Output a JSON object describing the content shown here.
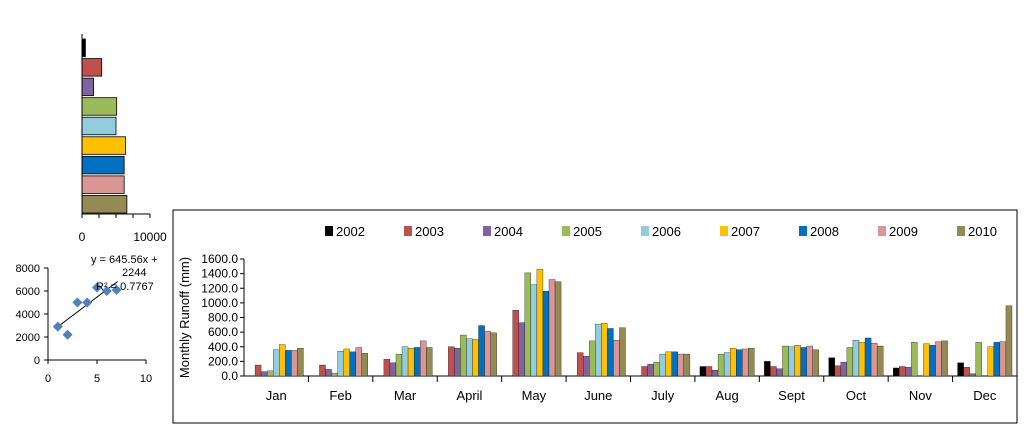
{
  "chart_data": [
    {
      "type": "bar",
      "orientation": "horizontal",
      "categories": [
        "2002",
        "2003",
        "2004",
        "2005",
        "2006",
        "2007",
        "2008",
        "2009",
        "2010"
      ],
      "values": [
        500,
        2900,
        1700,
        5100,
        5000,
        6400,
        6200,
        6200,
        6600
      ],
      "colors": [
        "#000000",
        "#c0504d",
        "#8064a2",
        "#9bbb59",
        "#93cddd",
        "#ffc000",
        "#0070c0",
        "#d99694",
        "#948a54"
      ],
      "xlim": [
        0,
        10000
      ],
      "xticks": [
        0,
        10000
      ],
      "xtick_labels": [
        "0",
        "10000"
      ],
      "title": "",
      "xlabel": "",
      "ylabel": ""
    },
    {
      "type": "scatter",
      "x": [
        1,
        2,
        3,
        4,
        5,
        6,
        7
      ],
      "y": [
        2900,
        2200,
        5000,
        5000,
        6300,
        6000,
        6100
      ],
      "xlim": [
        0,
        10
      ],
      "ylim": [
        0,
        8000
      ],
      "xticks": [
        "0",
        "5",
        "10"
      ],
      "yticks": [
        "0",
        "2000",
        "4000",
        "6000",
        "8000"
      ],
      "trendline": {
        "slope": 645.56,
        "intercept": 2244
      },
      "annotation": {
        "line1": "y = 645.56x +",
        "line2": "2244",
        "line3": "R² = 0.7767"
      },
      "marker_color": "#4f81bd",
      "title": "",
      "xlabel": "",
      "ylabel": ""
    },
    {
      "type": "bar",
      "categories": [
        "Jan",
        "Feb",
        "Mar",
        "April",
        "May",
        "June",
        "July",
        "Aug",
        "Sept",
        "Oct",
        "Nov",
        "Dec"
      ],
      "ylabel": "Monthly  Runoff (mm)",
      "xlabel": "",
      "title": "",
      "ylim": [
        0,
        1600
      ],
      "yticks": [
        "0.0",
        "200.0",
        "400.0",
        "600.0",
        "800.0",
        "1000.0",
        "1200.0",
        "1400.0",
        "1600.0"
      ],
      "legend_position": "top",
      "grid": false,
      "series": [
        {
          "name": "2002",
          "color": "#000000",
          "values": [
            0,
            0,
            0,
            0,
            0,
            0,
            0,
            130,
            200,
            250,
            110,
            180
          ]
        },
        {
          "name": "2003",
          "color": "#c0504d",
          "values": [
            150,
            150,
            230,
            400,
            900,
            320,
            130,
            130,
            130,
            140,
            130,
            120
          ]
        },
        {
          "name": "2004",
          "color": "#8064a2",
          "values": [
            60,
            90,
            180,
            380,
            730,
            270,
            160,
            80,
            100,
            190,
            120,
            30
          ]
        },
        {
          "name": "2005",
          "color": "#9bbb59",
          "values": [
            70,
            40,
            300,
            560,
            1410,
            480,
            190,
            300,
            410,
            390,
            460,
            460
          ]
        },
        {
          "name": "2006",
          "color": "#93cddd",
          "values": [
            360,
            340,
            400,
            510,
            1250,
            710,
            300,
            320,
            400,
            490,
            0,
            0
          ]
        },
        {
          "name": "2007",
          "color": "#ffc000",
          "values": [
            430,
            370,
            380,
            500,
            1460,
            720,
            330,
            380,
            420,
            460,
            440,
            400
          ]
        },
        {
          "name": "2008",
          "color": "#0070c0",
          "values": [
            350,
            330,
            390,
            690,
            1160,
            650,
            330,
            360,
            390,
            520,
            420,
            460
          ]
        },
        {
          "name": "2009",
          "color": "#d99694",
          "values": [
            350,
            390,
            480,
            610,
            1320,
            490,
            300,
            370,
            410,
            450,
            470,
            470
          ]
        },
        {
          "name": "2010",
          "color": "#948a54",
          "values": [
            380,
            310,
            390,
            590,
            1290,
            660,
            300,
            380,
            360,
            410,
            480,
            960
          ]
        }
      ]
    }
  ]
}
